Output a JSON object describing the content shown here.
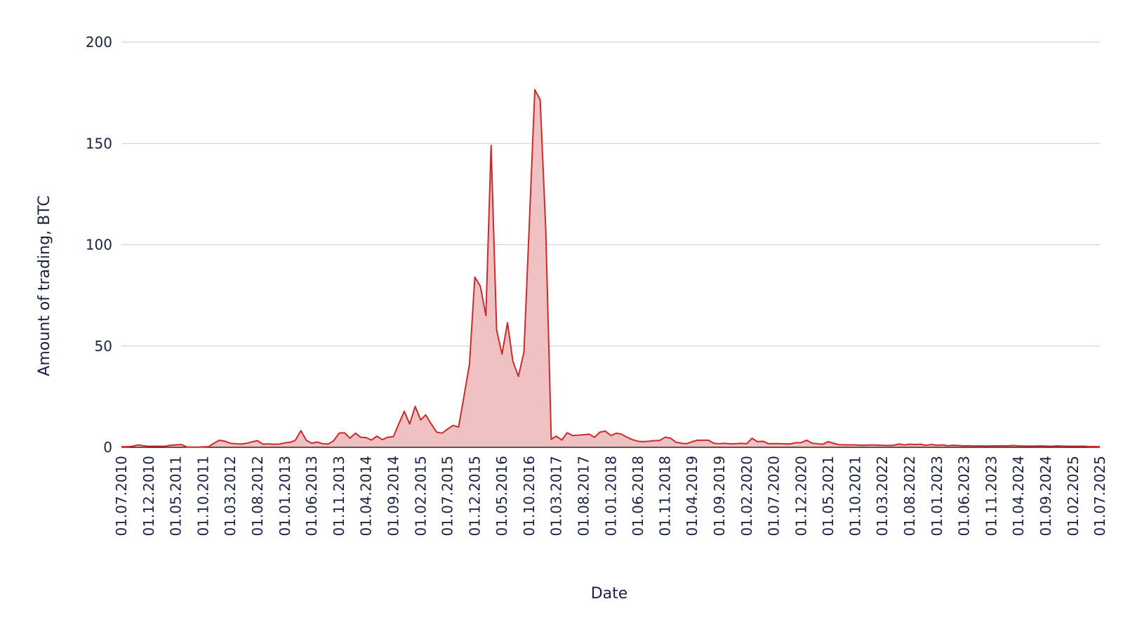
{
  "chart_data": {
    "type": "area",
    "title": "",
    "xlabel": "Date",
    "ylabel": "Amount of trading, BTC",
    "ylim": [
      0,
      200
    ],
    "yticks": [
      0,
      50,
      100,
      150,
      200
    ],
    "grid": true,
    "legend": "none",
    "xtick_labels": [
      "01.07.2010",
      "01.12.2010",
      "01.05.2011",
      "01.10.2011",
      "01.03.2012",
      "01.08.2012",
      "01.01.2013",
      "01.06.2013",
      "01.11.2013",
      "01.04.2014",
      "01.09.2014",
      "01.02.2015",
      "01.07.2015",
      "01.12.2015",
      "01.05.2016",
      "01.10.2016",
      "01.03.2017",
      "01.08.2017",
      "01.01.2018",
      "01.06.2018",
      "01.11.2018",
      "01.04.2019",
      "01.09.2019",
      "01.02.2020",
      "01.07.2020",
      "01.12.2020",
      "01.05.2021",
      "01.10.2021",
      "01.03.2022",
      "01.08.2022",
      "01.01.2023",
      "01.06.2023",
      "01.11.2023",
      "01.04.2024",
      "01.09.2024",
      "01.02.2025",
      "01.07.2025"
    ],
    "series": [
      {
        "color": "#cc2b2b",
        "fill": "#efc1c2",
        "points": [
          [
            "2010-07",
            0.3
          ],
          [
            "2010-08",
            0.3
          ],
          [
            "2010-09",
            0.5
          ],
          [
            "2010-10",
            1.2
          ],
          [
            "2010-11",
            0.8
          ],
          [
            "2010-12",
            0.5
          ],
          [
            "2011-01",
            0.5
          ],
          [
            "2011-02",
            0.5
          ],
          [
            "2011-03",
            0.5
          ],
          [
            "2011-04",
            1.0
          ],
          [
            "2011-05",
            1.2
          ],
          [
            "2011-06",
            1.4
          ],
          [
            "2011-07",
            0.2
          ],
          [
            "2011-08",
            0.1
          ],
          [
            "2011-09",
            0.1
          ],
          [
            "2011-10",
            0.2
          ],
          [
            "2011-11",
            0.3
          ],
          [
            "2011-12",
            2.0
          ],
          [
            "2012-01",
            3.5
          ],
          [
            "2012-02",
            3.0
          ],
          [
            "2012-03",
            2.0
          ],
          [
            "2012-04",
            1.8
          ],
          [
            "2012-05",
            1.6
          ],
          [
            "2012-06",
            2.0
          ],
          [
            "2012-07",
            2.7
          ],
          [
            "2012-08",
            3.3
          ],
          [
            "2012-09",
            1.5
          ],
          [
            "2012-10",
            1.7
          ],
          [
            "2012-11",
            1.5
          ],
          [
            "2012-12",
            1.6
          ],
          [
            "2013-01",
            2.2
          ],
          [
            "2013-02",
            2.5
          ],
          [
            "2013-03",
            3.5
          ],
          [
            "2013-04",
            8.2
          ],
          [
            "2013-05",
            3.5
          ],
          [
            "2013-06",
            2.0
          ],
          [
            "2013-07",
            2.6
          ],
          [
            "2013-08",
            1.8
          ],
          [
            "2013-09",
            1.6
          ],
          [
            "2013-10",
            3.2
          ],
          [
            "2013-11",
            7.0
          ],
          [
            "2013-12",
            7.2
          ],
          [
            "2014-01",
            4.5
          ],
          [
            "2014-02",
            7.0
          ],
          [
            "2014-03",
            5.0
          ],
          [
            "2014-04",
            4.8
          ],
          [
            "2014-05",
            3.6
          ],
          [
            "2014-06",
            5.5
          ],
          [
            "2014-07",
            3.8
          ],
          [
            "2014-08",
            5.0
          ],
          [
            "2014-09",
            5.3
          ],
          [
            "2014-10",
            11.5
          ],
          [
            "2014-11",
            17.8
          ],
          [
            "2014-12",
            11.5
          ],
          [
            "2015-01",
            20.2
          ],
          [
            "2015-02",
            13.5
          ],
          [
            "2015-03",
            16.0
          ],
          [
            "2015-04",
            11.5
          ],
          [
            "2015-05",
            7.5
          ],
          [
            "2015-06",
            7.0
          ],
          [
            "2015-07",
            9.0
          ],
          [
            "2015-08",
            10.8
          ],
          [
            "2015-09",
            10.0
          ],
          [
            "2015-10",
            25.0
          ],
          [
            "2015-11",
            41.0
          ],
          [
            "2015-12",
            84.0
          ],
          [
            "2016-01",
            79.5
          ],
          [
            "2016-02",
            65.0
          ],
          [
            "2016-03",
            149.0
          ],
          [
            "2016-04",
            58.0
          ],
          [
            "2016-05",
            46.0
          ],
          [
            "2016-06",
            61.5
          ],
          [
            "2016-07",
            42.5
          ],
          [
            "2016-08",
            35.0
          ],
          [
            "2016-09",
            47.0
          ],
          [
            "2016-10",
            110.0
          ],
          [
            "2016-11",
            176.5
          ],
          [
            "2016-12",
            171.5
          ],
          [
            "2017-01",
            108.0
          ],
          [
            "2017-02",
            4.0
          ],
          [
            "2017-03",
            5.5
          ],
          [
            "2017-04",
            3.6
          ],
          [
            "2017-05",
            7.2
          ],
          [
            "2017-06",
            5.8
          ],
          [
            "2017-07",
            6.0
          ],
          [
            "2017-08",
            6.2
          ],
          [
            "2017-09",
            6.5
          ],
          [
            "2017-10",
            5.0
          ],
          [
            "2017-11",
            7.5
          ],
          [
            "2017-12",
            8.0
          ],
          [
            "2018-01",
            5.8
          ],
          [
            "2018-02",
            7.0
          ],
          [
            "2018-03",
            6.5
          ],
          [
            "2018-04",
            5.0
          ],
          [
            "2018-05",
            3.8
          ],
          [
            "2018-06",
            3.0
          ],
          [
            "2018-07",
            2.8
          ],
          [
            "2018-08",
            3.0
          ],
          [
            "2018-09",
            3.3
          ],
          [
            "2018-10",
            3.4
          ],
          [
            "2018-11",
            5.0
          ],
          [
            "2018-12",
            4.5
          ],
          [
            "2019-01",
            2.5
          ],
          [
            "2019-02",
            2.0
          ],
          [
            "2019-03",
            1.8
          ],
          [
            "2019-04",
            2.8
          ],
          [
            "2019-05",
            3.5
          ],
          [
            "2019-06",
            3.5
          ],
          [
            "2019-07",
            3.5
          ],
          [
            "2019-08",
            2.0
          ],
          [
            "2019-09",
            1.8
          ],
          [
            "2019-10",
            2.0
          ],
          [
            "2019-11",
            1.7
          ],
          [
            "2019-12",
            1.8
          ],
          [
            "2020-01",
            2.0
          ],
          [
            "2020-02",
            1.8
          ],
          [
            "2020-03",
            4.5
          ],
          [
            "2020-04",
            2.8
          ],
          [
            "2020-05",
            3.0
          ],
          [
            "2020-06",
            1.8
          ],
          [
            "2020-07",
            1.8
          ],
          [
            "2020-08",
            1.8
          ],
          [
            "2020-09",
            1.7
          ],
          [
            "2020-10",
            1.7
          ],
          [
            "2020-11",
            2.3
          ],
          [
            "2020-12",
            2.3
          ],
          [
            "2021-01",
            3.5
          ],
          [
            "2021-02",
            2.0
          ],
          [
            "2021-03",
            1.8
          ],
          [
            "2021-04",
            1.5
          ],
          [
            "2021-05",
            2.8
          ],
          [
            "2021-06",
            2.0
          ],
          [
            "2021-07",
            1.3
          ],
          [
            "2021-08",
            1.2
          ],
          [
            "2021-09",
            1.2
          ],
          [
            "2021-10",
            1.2
          ],
          [
            "2021-11",
            1.0
          ],
          [
            "2021-12",
            1.1
          ],
          [
            "2022-01",
            1.2
          ],
          [
            "2022-02",
            1.1
          ],
          [
            "2022-03",
            1.0
          ],
          [
            "2022-04",
            0.9
          ],
          [
            "2022-05",
            1.0
          ],
          [
            "2022-06",
            1.6
          ],
          [
            "2022-07",
            1.2
          ],
          [
            "2022-08",
            1.5
          ],
          [
            "2022-09",
            1.4
          ],
          [
            "2022-10",
            1.5
          ],
          [
            "2022-11",
            1.0
          ],
          [
            "2022-12",
            1.4
          ],
          [
            "2023-01",
            1.0
          ],
          [
            "2023-02",
            1.2
          ],
          [
            "2023-03",
            0.8
          ],
          [
            "2023-04",
            1.0
          ],
          [
            "2023-05",
            0.9
          ],
          [
            "2023-06",
            0.7
          ],
          [
            "2023-07",
            0.8
          ],
          [
            "2023-08",
            0.6
          ],
          [
            "2023-09",
            0.7
          ],
          [
            "2023-10",
            0.6
          ],
          [
            "2023-11",
            0.7
          ],
          [
            "2023-12",
            0.7
          ],
          [
            "2024-01",
            0.8
          ],
          [
            "2024-02",
            0.7
          ],
          [
            "2024-03",
            0.9
          ],
          [
            "2024-04",
            0.7
          ],
          [
            "2024-05",
            0.6
          ],
          [
            "2024-06",
            0.6
          ],
          [
            "2024-07",
            0.6
          ],
          [
            "2024-08",
            0.7
          ],
          [
            "2024-09",
            0.6
          ],
          [
            "2024-10",
            0.5
          ],
          [
            "2024-11",
            0.7
          ],
          [
            "2024-12",
            0.6
          ],
          [
            "2025-01",
            0.5
          ],
          [
            "2025-02",
            0.5
          ],
          [
            "2025-03",
            0.5
          ],
          [
            "2025-04",
            0.5
          ],
          [
            "2025-05",
            0.4
          ],
          [
            "2025-06",
            0.4
          ],
          [
            "2025-07",
            0.3
          ]
        ]
      }
    ]
  }
}
